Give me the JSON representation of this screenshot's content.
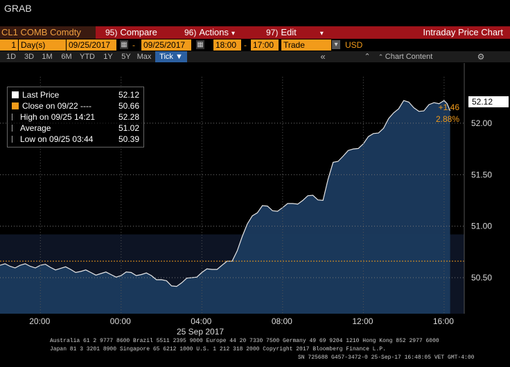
{
  "title": "GRAB",
  "menu": {
    "ticker": "CL1 COMB Comdty",
    "compare_num": "95)",
    "compare": "Compare",
    "actions_num": "96)",
    "actions": "Actions",
    "edit_num": "97)",
    "edit": "Edit",
    "view_title": "Intraday Price Chart"
  },
  "params": {
    "period_count": "1",
    "period_unit": "Day(s)",
    "start_date": "09/25/2017",
    "end_date": "09/25/2017",
    "dash": "-",
    "start_time": "18:00",
    "end_time": "17:00",
    "time_dash": "-",
    "data_type": "Trade",
    "currency": "USD"
  },
  "ranges": [
    "1D",
    "3D",
    "1M",
    "6M",
    "YTD",
    "1Y",
    "5Y",
    "Max"
  ],
  "range_active": "Tick",
  "range_caret": "▼",
  "toolbar": {
    "chart_content": "Chart Content"
  },
  "legend": [
    {
      "label": "Last Price",
      "value": "52.12",
      "color": "#ffffff",
      "marker": "box"
    },
    {
      "label": "Close on 09/22 ----",
      "value": "50.66",
      "color": "#f29b1a",
      "marker": "box"
    },
    {
      "label": "High on 09/25 14:21",
      "value": "52.28",
      "color": "#aaaaaa",
      "marker": "high"
    },
    {
      "label": "Average",
      "value": "51.02",
      "color": "#aaaaaa",
      "marker": "avg"
    },
    {
      "label": "Low on 09/25 03:44",
      "value": "50.39",
      "color": "#aaaaaa",
      "marker": "low"
    }
  ],
  "last_badge": "52.12",
  "change_abs": "+1.46",
  "change_pct": "2.88%",
  "date_label": "25 Sep 2017",
  "footer": {
    "line1": "Australia 61 2 9777 8600 Brazil 5511 2395 9000 Europe 44 20 7330 7500 Germany 49 69 9204 1210 Hong Kong 852 2977 6000",
    "line2": "Japan 81 3 3201 8900        Singapore 65 6212 1000      U.S. 1 212 318 2000            Copyright 2017 Bloomberg Finance L.P.",
    "line3": "SN 725688 G457-3472-0 25-Sep-17 16:48:05 VET  GMT-4:00"
  },
  "chart_data": {
    "type": "line",
    "title": "",
    "xlabel": "",
    "ylabel": "",
    "x_ticks": [
      "20:00",
      "00:00",
      "04:00",
      "08:00",
      "12:00",
      "16:00"
    ],
    "y_ticks": [
      "50.50",
      "51.00",
      "51.50",
      "52.00"
    ],
    "ylim": [
      50.15,
      52.45
    ],
    "xlim_hours": [
      18,
      41
    ],
    "reference_close": 50.66,
    "grid": true,
    "series": [
      {
        "name": "Last Price",
        "x_hours": [
          18,
          18.5,
          19,
          19.5,
          20,
          20.5,
          21,
          21.5,
          22,
          22.5,
          23,
          23.5,
          24,
          24.5,
          25,
          25.5,
          26,
          26.5,
          27,
          27.5,
          28,
          28.5,
          29,
          29.5,
          30,
          30.5,
          31,
          31.5,
          32,
          32.5,
          33,
          33.5,
          34,
          34.5,
          35,
          35.5,
          36,
          36.5,
          37,
          37.5,
          38,
          38.5,
          39,
          39.5,
          40,
          40.3
        ],
        "values": [
          50.62,
          50.61,
          50.62,
          50.61,
          50.62,
          50.6,
          50.59,
          50.58,
          50.56,
          50.55,
          50.54,
          50.53,
          50.52,
          50.55,
          50.53,
          50.52,
          50.48,
          50.42,
          50.45,
          50.5,
          50.55,
          50.58,
          50.62,
          50.66,
          50.9,
          51.1,
          51.2,
          51.15,
          51.18,
          51.22,
          51.25,
          51.3,
          51.25,
          51.62,
          51.68,
          51.75,
          51.8,
          51.9,
          51.95,
          52.1,
          52.22,
          52.15,
          52.12,
          52.2,
          52.22,
          52.12
        ]
      }
    ]
  }
}
